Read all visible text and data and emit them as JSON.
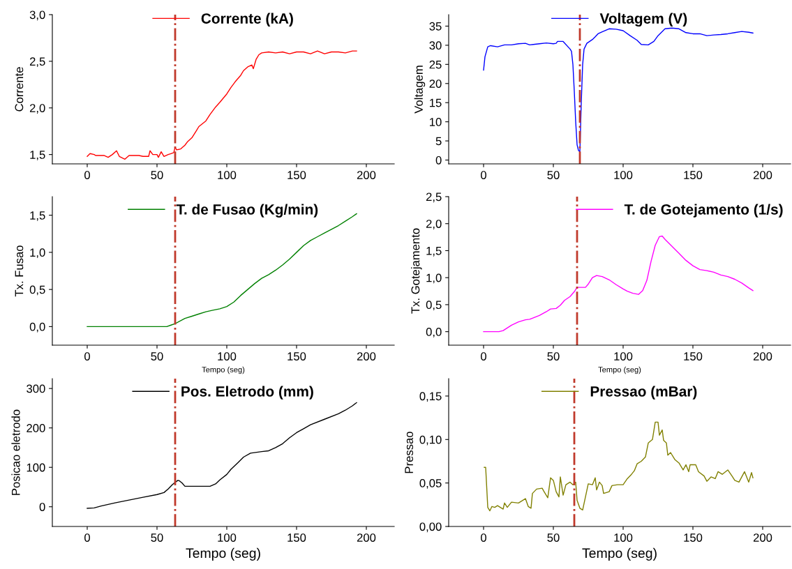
{
  "chart_data": [
    {
      "type": "line",
      "ylabel": "Corrente",
      "xlim": [
        -25,
        220
      ],
      "xticks": [
        0,
        50,
        100,
        150,
        200
      ],
      "ylim": [
        1.4,
        3.0
      ],
      "yticks": [
        {
          "value": 1.5,
          "label": "1,5"
        },
        {
          "value": 2.0,
          "label": "2,0"
        },
        {
          "value": 2.5,
          "label": "2,5"
        },
        {
          "value": 3.0,
          "label": "3,0"
        }
      ],
      "legend": "top",
      "grid": false,
      "series": [
        {
          "name": "Corrente (kA)",
          "color": "#ff0000",
          "x": [
            0,
            2,
            5,
            6,
            12,
            15,
            18,
            21,
            23,
            27,
            30,
            37,
            40,
            44,
            45,
            47,
            50,
            51,
            53,
            55,
            58,
            60,
            62,
            63,
            64,
            67,
            70,
            72,
            75,
            78,
            80,
            85,
            88,
            92,
            95,
            100,
            103,
            106,
            110,
            112,
            115,
            118,
            119,
            121,
            123,
            125,
            130,
            135,
            140,
            145,
            150,
            155,
            160,
            165,
            170,
            175,
            180,
            185,
            190,
            193
          ],
          "values": [
            1.48,
            1.51,
            1.5,
            1.49,
            1.49,
            1.47,
            1.5,
            1.54,
            1.48,
            1.45,
            1.49,
            1.49,
            1.48,
            1.48,
            1.54,
            1.5,
            1.5,
            1.47,
            1.53,
            1.48,
            1.5,
            1.51,
            1.52,
            1.58,
            1.55,
            1.56,
            1.6,
            1.64,
            1.68,
            1.75,
            1.8,
            1.86,
            1.93,
            2.01,
            2.06,
            2.15,
            2.22,
            2.28,
            2.35,
            2.4,
            2.44,
            2.46,
            2.42,
            2.52,
            2.57,
            2.59,
            2.6,
            2.59,
            2.6,
            2.58,
            2.6,
            2.6,
            2.58,
            2.61,
            2.58,
            2.6,
            2.6,
            2.59,
            2.61,
            2.61
          ]
        }
      ],
      "ref_lines": [
        {
          "axis": "x",
          "value": 63,
          "color": "#c0392b",
          "line_style": "dashdot"
        }
      ]
    },
    {
      "type": "line",
      "ylabel": "Voltagem",
      "xlim": [
        -25,
        220
      ],
      "xticks": [
        0,
        50,
        100,
        150,
        200
      ],
      "ylim": [
        -1,
        38
      ],
      "yticks": [
        0,
        5,
        10,
        15,
        20,
        25,
        30,
        35
      ],
      "legend": "top",
      "grid": false,
      "series": [
        {
          "name": "Voltagem (V)",
          "color": "#0000ff",
          "x": [
            0,
            1,
            3,
            5,
            10,
            15,
            20,
            25,
            30,
            33,
            40,
            45,
            50,
            52,
            53,
            57,
            62,
            63,
            64,
            65,
            66,
            67,
            68,
            69,
            70,
            71,
            72,
            74,
            78,
            80,
            82,
            85,
            90,
            95,
            100,
            105,
            110,
            113,
            118,
            122,
            125,
            130,
            135,
            140,
            145,
            150,
            155,
            160,
            165,
            170,
            175,
            180,
            185,
            190,
            193
          ],
          "values": [
            23.5,
            27,
            29.6,
            29.9,
            29.6,
            30.1,
            30.1,
            30.4,
            30.5,
            30.1,
            30.4,
            30.6,
            30.4,
            30.5,
            31,
            31,
            29,
            28.4,
            25,
            18,
            10,
            4,
            2.5,
            2.2,
            15,
            25,
            29,
            30.5,
            31.5,
            32.2,
            33,
            33.5,
            34.3,
            34.2,
            33.8,
            32.5,
            31.3,
            30.2,
            30.1,
            31,
            32.5,
            34.3,
            34.5,
            34.3,
            33.3,
            33,
            33,
            32.5,
            32.7,
            32.8,
            33,
            33.3,
            33.6,
            33.4,
            33.2
          ]
        }
      ],
      "ref_lines": [
        {
          "axis": "x",
          "value": 69,
          "color": "#c0392b",
          "line_style": "dashdot"
        }
      ]
    },
    {
      "type": "line",
      "ylabel": "Tx. Fusao",
      "xlabel": "Tempo (seg)",
      "xlim": [
        -25,
        220
      ],
      "xticks": [
        0,
        50,
        100,
        150,
        200
      ],
      "ylim": [
        -0.25,
        1.75
      ],
      "yticks": [
        {
          "value": 0.0,
          "label": "0,0"
        },
        {
          "value": 0.5,
          "label": "0,5"
        },
        {
          "value": 1.0,
          "label": "1,0"
        },
        {
          "value": 1.5,
          "label": "1,5"
        }
      ],
      "legend": "top",
      "grid": false,
      "series": [
        {
          "name": "T. de Fusao (Kg/min)",
          "color": "#008000",
          "x": [
            0,
            57,
            60,
            63,
            70,
            75,
            80,
            85,
            90,
            95,
            100,
            105,
            110,
            115,
            120,
            125,
            130,
            135,
            140,
            145,
            150,
            155,
            160,
            165,
            170,
            175,
            180,
            185,
            190,
            193
          ],
          "values": [
            0,
            0,
            0.02,
            0.04,
            0.11,
            0.14,
            0.17,
            0.2,
            0.22,
            0.24,
            0.27,
            0.33,
            0.42,
            0.5,
            0.58,
            0.65,
            0.7,
            0.76,
            0.83,
            0.91,
            1.0,
            1.09,
            1.16,
            1.21,
            1.26,
            1.31,
            1.36,
            1.42,
            1.48,
            1.52
          ]
        }
      ],
      "ref_lines": [
        {
          "axis": "x",
          "value": 63,
          "color": "#c0392b",
          "line_style": "dashdot"
        }
      ]
    },
    {
      "type": "line",
      "ylabel": "Tx. Gotejamento",
      "xlabel": "Tempo (seg)",
      "xlim": [
        -25,
        220
      ],
      "xticks": [
        0,
        50,
        100,
        150,
        200
      ],
      "ylim": [
        -0.25,
        2.5
      ],
      "yticks": [
        {
          "value": 0.0,
          "label": "0,0"
        },
        {
          "value": 0.5,
          "label": "0,5"
        },
        {
          "value": 1.0,
          "label": "1,0"
        },
        {
          "value": 1.5,
          "label": "1,5"
        },
        {
          "value": 2.0,
          "label": "2,0"
        },
        {
          "value": 2.5,
          "label": "2,5"
        }
      ],
      "legend": "top right",
      "grid": false,
      "series": [
        {
          "name": "T. de Gotejamento (1/s)",
          "color": "#ff00ff",
          "x": [
            0,
            11,
            14,
            20,
            25,
            30,
            33,
            40,
            45,
            48,
            52,
            55,
            58,
            62,
            65,
            67,
            73,
            75,
            78,
            81,
            85,
            90,
            95,
            100,
            103,
            107,
            111,
            114,
            117,
            120,
            123,
            126,
            128,
            130,
            135,
            140,
            145,
            150,
            155,
            160,
            165,
            170,
            175,
            180,
            185,
            190,
            193
          ],
          "values": [
            0,
            0,
            0.02,
            0.12,
            0.18,
            0.22,
            0.23,
            0.3,
            0.37,
            0.42,
            0.43,
            0.49,
            0.58,
            0.65,
            0.74,
            0.82,
            0.82,
            0.88,
            1.0,
            1.04,
            1.02,
            0.96,
            0.87,
            0.79,
            0.75,
            0.71,
            0.69,
            0.76,
            0.95,
            1.3,
            1.6,
            1.76,
            1.77,
            1.71,
            1.58,
            1.45,
            1.32,
            1.22,
            1.15,
            1.13,
            1.1,
            1.05,
            1.02,
            0.97,
            0.9,
            0.81,
            0.76
          ]
        }
      ],
      "ref_lines": [
        {
          "axis": "x",
          "value": 67,
          "color": "#c0392b",
          "line_style": "dashdot"
        }
      ]
    },
    {
      "type": "line",
      "ylabel": "Posicao eletrodo",
      "xlabel": "Tempo (seg)",
      "xlim": [
        -25,
        220
      ],
      "xticks": [
        0,
        50,
        100,
        150,
        200
      ],
      "ylim": [
        -50,
        325
      ],
      "yticks": [
        0,
        100,
        200,
        300
      ],
      "legend": "top",
      "grid": false,
      "series": [
        {
          "name": "Pos. Eletrodo (mm)",
          "color": "#000000",
          "x": [
            0,
            5,
            10,
            20,
            30,
            40,
            50,
            55,
            58,
            61,
            63,
            65,
            66,
            68,
            70,
            80,
            88,
            92,
            95,
            100,
            103,
            108,
            112,
            117,
            125,
            130,
            135,
            140,
            145,
            150,
            155,
            160,
            170,
            180,
            185,
            190,
            193
          ],
          "values": [
            -4,
            -3,
            2,
            10,
            17,
            24,
            31,
            36,
            45,
            56,
            62,
            67,
            66,
            60,
            52,
            52,
            52,
            58,
            68,
            82,
            95,
            112,
            126,
            136,
            140,
            142,
            150,
            160,
            175,
            188,
            198,
            208,
            222,
            236,
            245,
            256,
            264
          ]
        }
      ],
      "ref_lines": [
        {
          "axis": "x",
          "value": 63,
          "color": "#c0392b",
          "line_style": "dashdot"
        }
      ]
    },
    {
      "type": "line",
      "ylabel": "Pressao",
      "xlabel": "Tempo (seg)",
      "xlim": [
        -25,
        220
      ],
      "xticks": [
        0,
        50,
        100,
        150,
        200
      ],
      "ylim": [
        0,
        0.17
      ],
      "yticks": [
        {
          "value": 0.0,
          "label": "0,00"
        },
        {
          "value": 0.05,
          "label": "0,05"
        },
        {
          "value": 0.1,
          "label": "0,10"
        },
        {
          "value": 0.15,
          "label": "0,15"
        }
      ],
      "legend": "top",
      "grid": false,
      "series": [
        {
          "name": "Pressao (mBar)",
          "color": "#808000",
          "x": [
            0.5,
            1.5,
            3,
            4.5,
            6,
            8,
            10,
            14,
            15,
            17,
            20,
            25,
            30,
            32,
            34,
            35,
            38,
            42,
            43,
            46,
            48,
            50,
            52,
            54,
            55,
            57,
            59,
            62,
            64,
            66,
            67,
            69,
            71,
            73,
            75,
            78,
            80,
            81,
            83,
            85,
            86,
            90,
            92,
            96,
            100,
            103,
            106,
            108,
            110,
            113,
            116,
            118,
            121,
            123,
            125,
            126,
            128,
            129,
            131,
            132,
            134,
            137,
            140,
            143,
            145,
            147,
            148,
            152,
            154,
            158,
            160,
            163,
            166,
            168,
            171,
            175,
            178,
            180,
            183,
            185,
            187,
            190,
            192,
            193
          ],
          "values": [
            0.068,
            0.068,
            0.022,
            0.018,
            0.023,
            0.022,
            0.024,
            0.02,
            0.027,
            0.022,
            0.028,
            0.027,
            0.032,
            0.023,
            0.021,
            0.038,
            0.043,
            0.044,
            0.041,
            0.033,
            0.056,
            0.053,
            0.04,
            0.034,
            0.057,
            0.036,
            0.048,
            0.051,
            0.048,
            0.051,
            0.03,
            0.021,
            0.019,
            0.034,
            0.049,
            0.048,
            0.056,
            0.042,
            0.051,
            0.047,
            0.038,
            0.04,
            0.047,
            0.048,
            0.048,
            0.055,
            0.06,
            0.064,
            0.072,
            0.075,
            0.08,
            0.096,
            0.1,
            0.12,
            0.12,
            0.105,
            0.111,
            0.099,
            0.096,
            0.082,
            0.085,
            0.077,
            0.073,
            0.065,
            0.071,
            0.063,
            0.071,
            0.071,
            0.063,
            0.058,
            0.052,
            0.057,
            0.055,
            0.063,
            0.06,
            0.065,
            0.058,
            0.053,
            0.051,
            0.057,
            0.063,
            0.051,
            0.062,
            0.056
          ]
        }
      ],
      "ref_lines": [
        {
          "axis": "x",
          "value": 65,
          "color": "#c0392b",
          "line_style": "dashdot"
        }
      ]
    }
  ]
}
